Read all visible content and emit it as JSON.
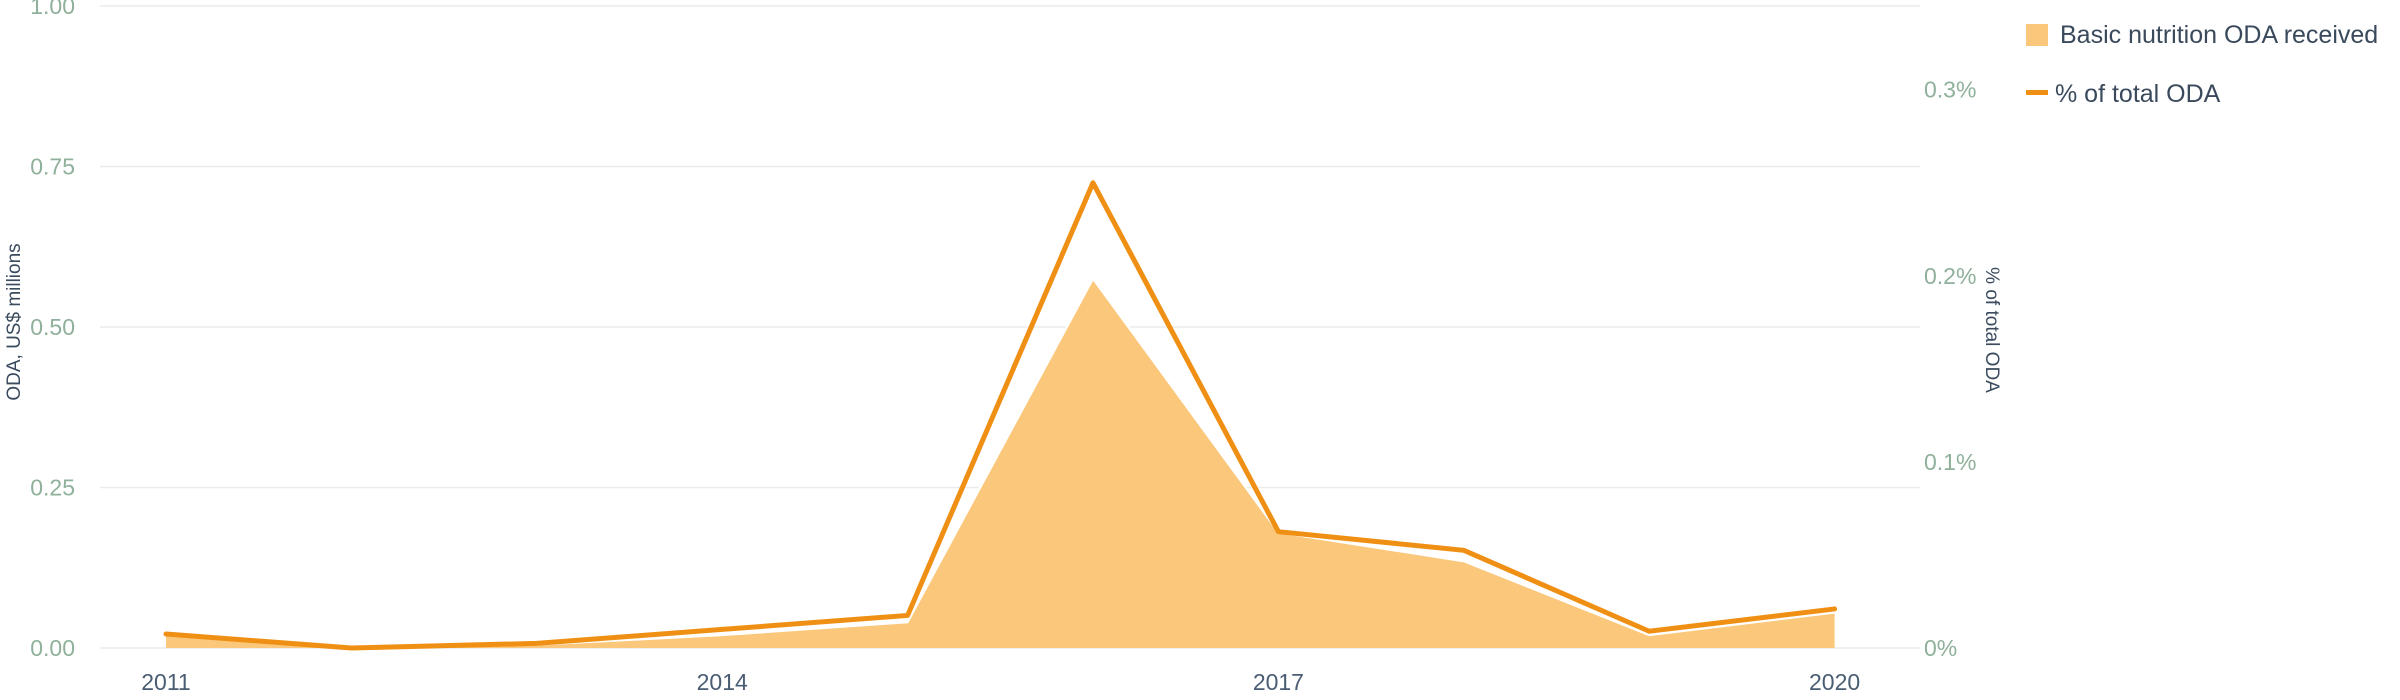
{
  "colors": {
    "area_fill": "#fac77b",
    "line_stroke": "#ef9014",
    "tick_text": "#8fb09a",
    "year_text": "#4a5d73",
    "axis_title_text": "#3b4b5e",
    "legend_text": "#3a4a5c",
    "gridline": "#ececec",
    "area_outline": "#ffffff"
  },
  "chart_data": {
    "type": "area",
    "x": [
      "2011",
      "2012",
      "2013",
      "2014",
      "2015",
      "2016",
      "2017",
      "2018",
      "2019",
      "2020"
    ],
    "series": [
      {
        "name": "Basic nutrition ODA received",
        "type": "area",
        "axis": "left",
        "values": [
          0.02,
          0.0,
          0.005,
          0.02,
          0.04,
          0.575,
          0.18,
          0.135,
          0.02,
          0.055
        ]
      },
      {
        "name": "% of total ODA",
        "type": "line",
        "axis": "right",
        "values": [
          0.0075,
          0.0,
          0.0025,
          0.01,
          0.0175,
          0.25,
          0.0625,
          0.0525,
          0.009,
          0.021
        ]
      }
    ],
    "x_tick_labels": [
      "2011",
      "2014",
      "2017",
      "2020"
    ],
    "x_tick_values": [
      "2011",
      "2014",
      "2017",
      "2020"
    ],
    "ylabel": "ODA, US$ millions",
    "ylim": [
      0,
      1.0
    ],
    "y_ticks": [
      "0.00",
      "0.25",
      "0.50",
      "0.75",
      "1.00"
    ],
    "y_tick_values": [
      0,
      0.25,
      0.5,
      0.75,
      1.0
    ],
    "y2label": "% of total ODA",
    "y2lim": [
      0,
      0.345
    ],
    "y2_ticks": [
      "0%",
      "0.1%",
      "0.2%",
      "0.3%"
    ],
    "y2_tick_values": [
      0,
      0.1,
      0.2,
      0.3
    ],
    "grid": true,
    "legend_position": "top-right"
  }
}
